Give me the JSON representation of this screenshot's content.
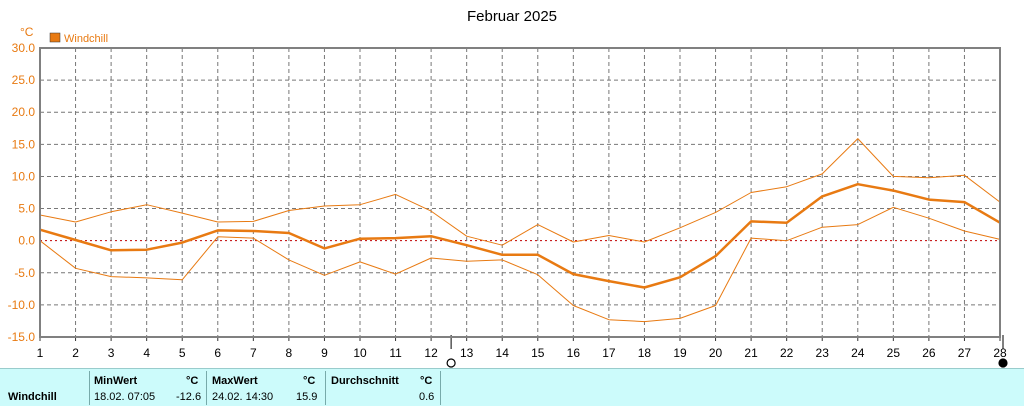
{
  "chart_data": {
    "type": "line",
    "title": "Februar 2025",
    "ylabel": "°C",
    "ylim": [
      -15,
      30
    ],
    "yticks": [
      "30.0",
      "25.0",
      "20.0",
      "15.0",
      "10.0",
      "5.0",
      "0.0",
      "-5.0",
      "-10.0",
      "-15.0"
    ],
    "x": [
      "1",
      "2",
      "3",
      "4",
      "5",
      "6",
      "7",
      "8",
      "9",
      "10",
      "11",
      "12",
      "13",
      "14",
      "15",
      "16",
      "17",
      "18",
      "19",
      "20",
      "21",
      "22",
      "23",
      "24",
      "25",
      "26",
      "27",
      "28"
    ],
    "grid": true,
    "legend": "top-left",
    "series": [
      {
        "name": "Windchill",
        "role": "mean",
        "color": "#e87a12",
        "values": [
          1.7,
          0.1,
          -1.5,
          -1.4,
          -0.3,
          1.6,
          1.5,
          1.2,
          -1.2,
          0.3,
          0.4,
          0.7,
          -0.7,
          -2.2,
          -2.2,
          -5.2,
          -6.3,
          -7.3,
          -5.7,
          -2.4,
          3.0,
          2.8,
          6.9,
          8.8,
          7.8,
          6.4,
          6.0,
          2.8
        ]
      },
      {
        "role": "max",
        "color": "#e87a12",
        "values": [
          4.0,
          2.9,
          4.5,
          5.6,
          4.3,
          2.9,
          3.0,
          4.7,
          5.4,
          5.6,
          7.2,
          4.6,
          0.7,
          -0.7,
          2.5,
          -0.2,
          0.8,
          -0.2,
          2.0,
          4.4,
          7.5,
          8.4,
          10.4,
          15.9,
          10.0,
          9.8,
          10.2,
          6.0
        ]
      },
      {
        "role": "min",
        "color": "#e87a12",
        "values": [
          0.0,
          -4.3,
          -5.6,
          -5.8,
          -6.1,
          0.6,
          0.4,
          -3.0,
          -5.4,
          -3.3,
          -5.2,
          -2.7,
          -3.2,
          -3.0,
          -5.3,
          -10.1,
          -12.3,
          -12.6,
          -12.1,
          -10.1,
          0.4,
          0.0,
          2.1,
          2.5,
          5.2,
          3.5,
          1.5,
          0.2
        ]
      }
    ],
    "moon_markers": [
      {
        "day": "12",
        "phase": "full"
      },
      {
        "day": "28",
        "phase": "new"
      }
    ]
  },
  "stats": {
    "label": "Windchill",
    "min_header": "MinWert",
    "min_unit": "°C",
    "min_time": "18.02.  07:05",
    "min_value": "-12.6",
    "max_header": "MaxWert",
    "max_unit": "°C",
    "max_time": "24.02.  14:30",
    "max_value": "15.9",
    "avg_header": "Durchschnitt",
    "avg_unit": "°C",
    "avg_value": "0.6"
  }
}
